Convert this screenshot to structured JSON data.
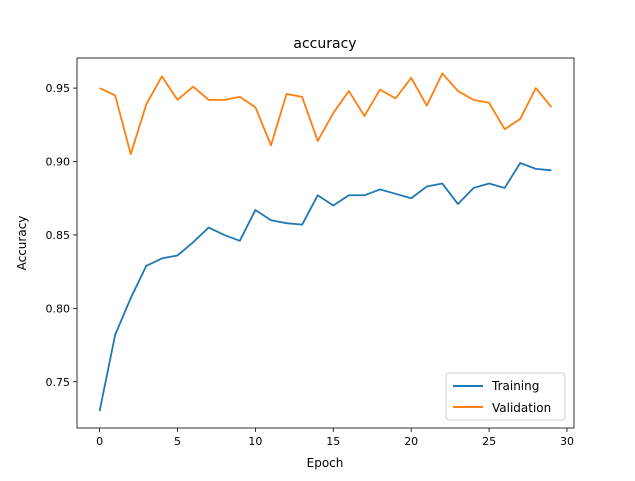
{
  "chart_data": {
    "type": "line",
    "title": "accuracy",
    "xlabel": "Epoch",
    "ylabel": "Accuracy",
    "xlim": [
      -1.45,
      30.45
    ],
    "ylim": [
      0.7185,
      0.9705
    ],
    "xticks": [
      0,
      5,
      10,
      15,
      20,
      25,
      30
    ],
    "yticks": [
      0.75,
      0.8,
      0.85,
      0.9,
      0.95
    ],
    "ytick_labels": [
      "0.75",
      "0.80",
      "0.85",
      "0.90",
      "0.95"
    ],
    "grid": false,
    "legend_position": "lower-right",
    "x": [
      0,
      1,
      2,
      3,
      4,
      5,
      6,
      7,
      8,
      9,
      10,
      11,
      12,
      13,
      14,
      15,
      16,
      17,
      18,
      19,
      20,
      21,
      22,
      23,
      24,
      25,
      26,
      27,
      28,
      29
    ],
    "series": [
      {
        "name": "Training",
        "color": "#1f77b4",
        "values": [
          0.73,
          0.782,
          0.807,
          0.829,
          0.834,
          0.836,
          0.845,
          0.855,
          0.85,
          0.846,
          0.867,
          0.86,
          0.858,
          0.857,
          0.877,
          0.87,
          0.877,
          0.877,
          0.881,
          0.878,
          0.875,
          0.883,
          0.885,
          0.871,
          0.882,
          0.885,
          0.882,
          0.899,
          0.895,
          0.894
        ]
      },
      {
        "name": "Validation",
        "color": "#ff7f0e",
        "values": [
          0.95,
          0.945,
          0.905,
          0.939,
          0.958,
          0.942,
          0.951,
          0.942,
          0.942,
          0.944,
          0.937,
          0.911,
          0.946,
          0.944,
          0.914,
          0.933,
          0.948,
          0.931,
          0.949,
          0.943,
          0.957,
          0.938,
          0.96,
          0.948,
          0.942,
          0.94,
          0.922,
          0.929,
          0.95,
          0.937
        ]
      }
    ]
  }
}
